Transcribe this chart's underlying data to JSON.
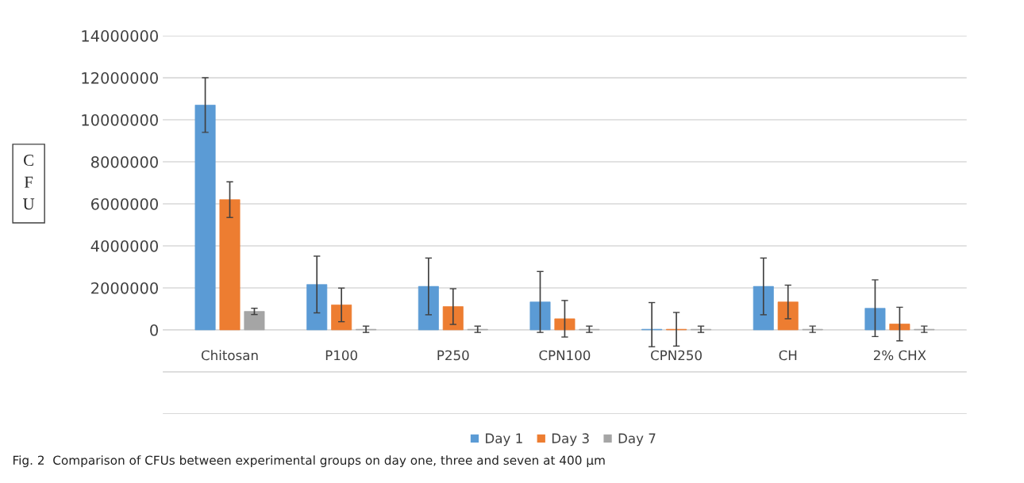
{
  "chart_data": {
    "type": "bar",
    "categories": [
      "Chitosan",
      "P100",
      "P250",
      "CPN100",
      "CPN250",
      "CH",
      "2% CHX"
    ],
    "series": [
      {
        "name": "Day 1",
        "color": "#5b9bd5",
        "values": [
          10700000,
          2160000,
          2070000,
          1330000,
          30000,
          2070000,
          1030000
        ],
        "errors": [
          1300000,
          1350000,
          1350000,
          1450000,
          [
            -800000,
            1300000
          ],
          1350000,
          1350000
        ]
      },
      {
        "name": "Day 3",
        "color": "#ed7d31",
        "values": [
          6200000,
          1190000,
          1110000,
          530000,
          30000,
          1330000,
          280000
        ],
        "errors": [
          850000,
          800000,
          850000,
          870000,
          800000,
          800000,
          800000
        ]
      },
      {
        "name": "Day 7",
        "color": "#a5a5a5",
        "values": [
          880000,
          30000,
          30000,
          30000,
          30000,
          30000,
          30000
        ],
        "errors": [
          150000,
          150000,
          150000,
          150000,
          150000,
          150000,
          150000
        ]
      }
    ],
    "ylabel": "CFU",
    "ylim": [
      -4000000,
      14000000
    ],
    "yticks": [
      {
        "value": -4000000,
        "label": null
      },
      {
        "value": -2000000,
        "label": null
      },
      0,
      2000000,
      4000000,
      6000000,
      8000000,
      10000000,
      12000000,
      14000000
    ],
    "grid": "y",
    "legend": "bottom",
    "annotations": [
      "Fig. 2  Comparison of CFUs between experimental groups on day one, three and seven at 400 μm"
    ]
  }
}
